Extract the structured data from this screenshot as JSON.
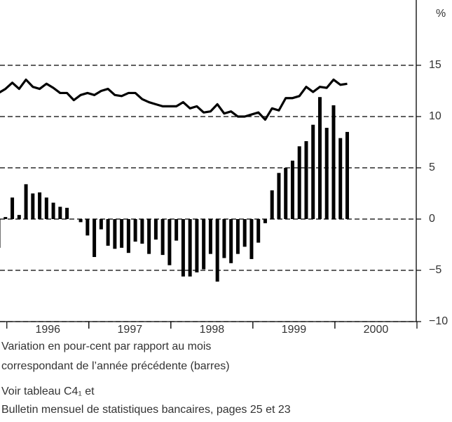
{
  "chart_data": {
    "type": "bar_line",
    "unit_label": "%",
    "categories": [
      null,
      null,
      null,
      null,
      null,
      null,
      null,
      null,
      null,
      null,
      null,
      null,
      null,
      null,
      null,
      null,
      null,
      null,
      null,
      null,
      null,
      null,
      null,
      null,
      null,
      null,
      null,
      null,
      null,
      null,
      null,
      null,
      null,
      null,
      null,
      null,
      null,
      null,
      null,
      null,
      null,
      null,
      null,
      null,
      null,
      null,
      null,
      null,
      null,
      null,
      null,
      null
    ],
    "series": [
      {
        "type": "bar",
        "color": "#000000",
        "values": [
          -2.8,
          0.2,
          2.1,
          0.4,
          3.4,
          2.5,
          2.6,
          2.1,
          1.6,
          1.2,
          1.1,
          0,
          -0.3,
          -1.6,
          -3.7,
          -1.0,
          -2.6,
          -2.9,
          -2.8,
          -3.3,
          -2.2,
          -2.4,
          -3.4,
          -2.0,
          -3.5,
          -4.5,
          -2.1,
          -5.6,
          -5.6,
          -5.2,
          -4.9,
          -3.4,
          -6.1,
          -3.8,
          -4.3,
          -3.4,
          -2.7,
          -3.9,
          -2.3,
          -0.4,
          2.8,
          4.5,
          5.0,
          5.7,
          7.1,
          7.6,
          9.2,
          11.9,
          8.9,
          11.1,
          7.9,
          8.5
        ]
      },
      {
        "type": "line",
        "color": "#000000",
        "values": [
          12.3,
          12.7,
          13.3,
          12.7,
          13.6,
          12.9,
          12.7,
          13.2,
          12.8,
          12.3,
          12.3,
          11.6,
          12.1,
          12.3,
          12.1,
          12.5,
          12.7,
          12.1,
          12.0,
          12.3,
          12.3,
          11.7,
          11.4,
          11.2,
          11.0,
          11.0,
          11.0,
          11.4,
          10.8,
          11.0,
          10.4,
          10.5,
          11.2,
          10.3,
          10.5,
          10.0,
          10.0,
          10.2,
          10.4,
          9.7,
          10.8,
          10.6,
          11.8,
          11.8,
          12.0,
          12.9,
          12.4,
          12.9,
          12.8,
          13.6,
          13.1,
          13.2
        ]
      }
    ],
    "xlim": [
      0.2,
      61.1
    ],
    "xticks": [
      {
        "value": 7.2,
        "label": "1996"
      },
      {
        "value": 19.2,
        "label": "1997"
      },
      {
        "value": 31.2,
        "label": "1998"
      },
      {
        "value": 43.2,
        "label": "1999"
      },
      {
        "value": 55.2,
        "label": "2000"
      }
    ],
    "ylim": [
      -10,
      20
    ],
    "yticks": [
      {
        "value": -10,
        "label": "−10"
      },
      {
        "value": -5,
        "label": "−5"
      },
      0,
      5,
      10,
      15
    ],
    "grid": true,
    "notes": [
      "Variation en pour-cent par rapport au mois",
      "correspondant de l’année précédente (barres)",
      "Voir tableau C4₁ et",
      "Bulletin mensuel de statistiques bancaires, pages 25 et 23"
    ]
  }
}
